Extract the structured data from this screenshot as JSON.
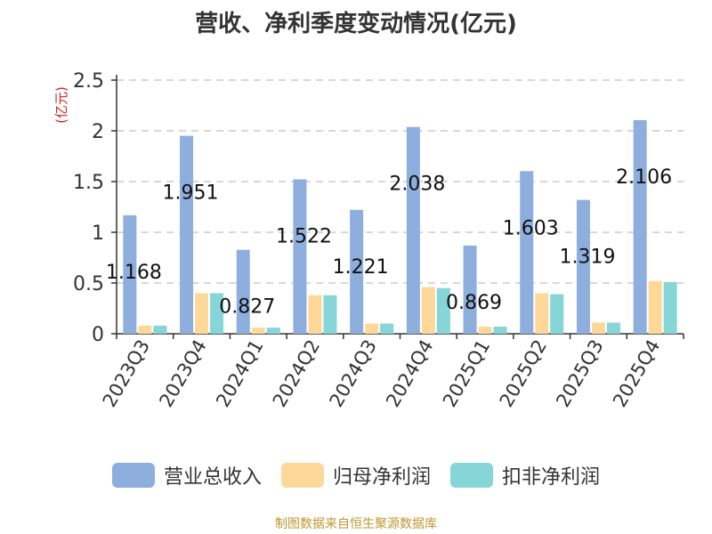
{
  "title": "营收、净利季度变动情况(亿元)",
  "footer": "制图数据来自恒生聚源数据库",
  "chart_data": {
    "type": "bar",
    "title": "营收、净利季度变动情况(亿元)",
    "ylabel": "(亿元)",
    "xlabel": "",
    "ylim": [
      0,
      2.5
    ],
    "yticks": [
      "0",
      "0.5",
      "1",
      "1.5",
      "2",
      "2.5"
    ],
    "grid": true,
    "legend_position": "bottom",
    "categories": [
      "2023Q3",
      "2023Q4",
      "2024Q1",
      "2024Q2",
      "2024Q3",
      "2024Q4",
      "2025Q1",
      "2025Q2",
      "2025Q3",
      "2025Q4"
    ],
    "series": [
      {
        "name": "营业总收入",
        "color": "#8eaedd",
        "values": [
          1.168,
          1.951,
          0.827,
          1.522,
          1.221,
          2.038,
          0.869,
          1.603,
          1.319,
          2.106
        ],
        "labels": [
          "1.168",
          "1.951",
          "0.827",
          "1.522",
          "1.221",
          "2.038",
          "0.869",
          "1.603",
          "1.319",
          "2.106"
        ]
      },
      {
        "name": "归母净利润",
        "color": "#fdd899",
        "values": [
          0.08,
          0.4,
          0.06,
          0.38,
          0.1,
          0.46,
          0.07,
          0.4,
          0.11,
          0.52
        ]
      },
      {
        "name": "扣非净利润",
        "color": "#86d6d8",
        "values": [
          0.08,
          0.4,
          0.06,
          0.38,
          0.1,
          0.45,
          0.07,
          0.39,
          0.11,
          0.51
        ]
      }
    ]
  }
}
